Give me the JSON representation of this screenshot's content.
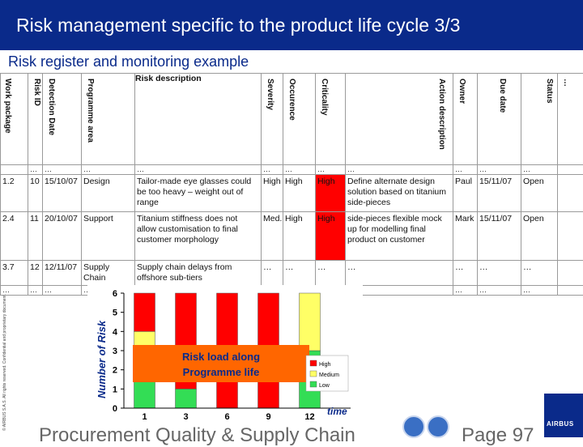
{
  "header": {
    "title": "Risk management specific to the product life cycle 3/3"
  },
  "subtitle": "Risk register and monitoring example",
  "side_text": "© AIRBUS S.A.S. All rights reserved. Confidential and proprietary document.",
  "table": {
    "headers": [
      "Work package",
      "Risk ID",
      "Detection Date",
      "Programme area",
      "Risk description",
      "Severity",
      "Occurence",
      "Criticality",
      "Action description",
      "Owner",
      "Due date",
      "Status",
      "…"
    ],
    "rows": [
      [
        "…",
        "…",
        "…",
        "…",
        "…",
        "…",
        "…",
        "…",
        "…",
        "…",
        "…",
        ""
      ],
      [
        "1.2",
        "10",
        "15/10/07",
        "Design",
        "Tailor-made eye glasses could be too heavy – weight out of range",
        "High",
        "High",
        "High",
        "Define alternate design solution based on titanium side-pieces",
        "Paul",
        "15/11/07",
        "Open"
      ],
      [
        "2.4",
        "11",
        "20/10/07",
        "Support",
        "Titanium stiffness does not allow customisation to final customer morphology",
        "Med.",
        "High",
        "High",
        "side-pieces flexible mock up for modelling final product on customer",
        "Mark",
        "15/11/07",
        "Open"
      ],
      [
        "3.7",
        "12",
        "12/11/07",
        "Supply Chain",
        "Supply chain delays from offshore sub-tiers",
        "…",
        "…",
        "…",
        "…",
        "…",
        "…",
        "…"
      ],
      [
        "…",
        "…",
        "…",
        "…",
        "…",
        "…",
        "…",
        "…",
        "…",
        "…",
        "…",
        "…"
      ]
    ]
  },
  "chart_data": {
    "type": "bar",
    "stacked": true,
    "categories": [
      "1",
      "3",
      "6",
      "9",
      "12"
    ],
    "x_tick_labels": [
      "1",
      "3",
      "6",
      "9",
      "12"
    ],
    "series": [
      {
        "name": "Low",
        "values": [
          2,
          1,
          0,
          0,
          3
        ]
      },
      {
        "name": "Medium",
        "values": [
          2,
          0,
          0,
          0,
          3
        ]
      },
      {
        "name": "High",
        "values": [
          2,
          5,
          6,
          6,
          0
        ]
      }
    ],
    "ylabel": "Number of Risk",
    "xlabel": "time",
    "ylim": [
      0,
      6
    ],
    "yticks": [
      0,
      1,
      2,
      3,
      4,
      5,
      6
    ],
    "annotation": "Risk load along Programme life",
    "legend": {
      "labels": [
        "High",
        "Medium",
        "Low"
      ],
      "placement": "right"
    },
    "colors": {
      "High": "#ff0000",
      "Medium": "#ffff66",
      "Low": "#33dd55",
      "annotation_bg": "#ff6600",
      "annotation_text": "#0a2a8a"
    },
    "grid": false
  },
  "footer": {
    "left": "Procurement Quality & Supply Chain",
    "right": "Page 97",
    "logo": "AIRBUS"
  },
  "colors": {
    "header_bg": "#0a2a8a",
    "accent": "#0a2a8a",
    "critical": "#ff0000"
  },
  "icons": [
    "home-icon",
    "back-icon",
    "airbus-logo"
  ]
}
